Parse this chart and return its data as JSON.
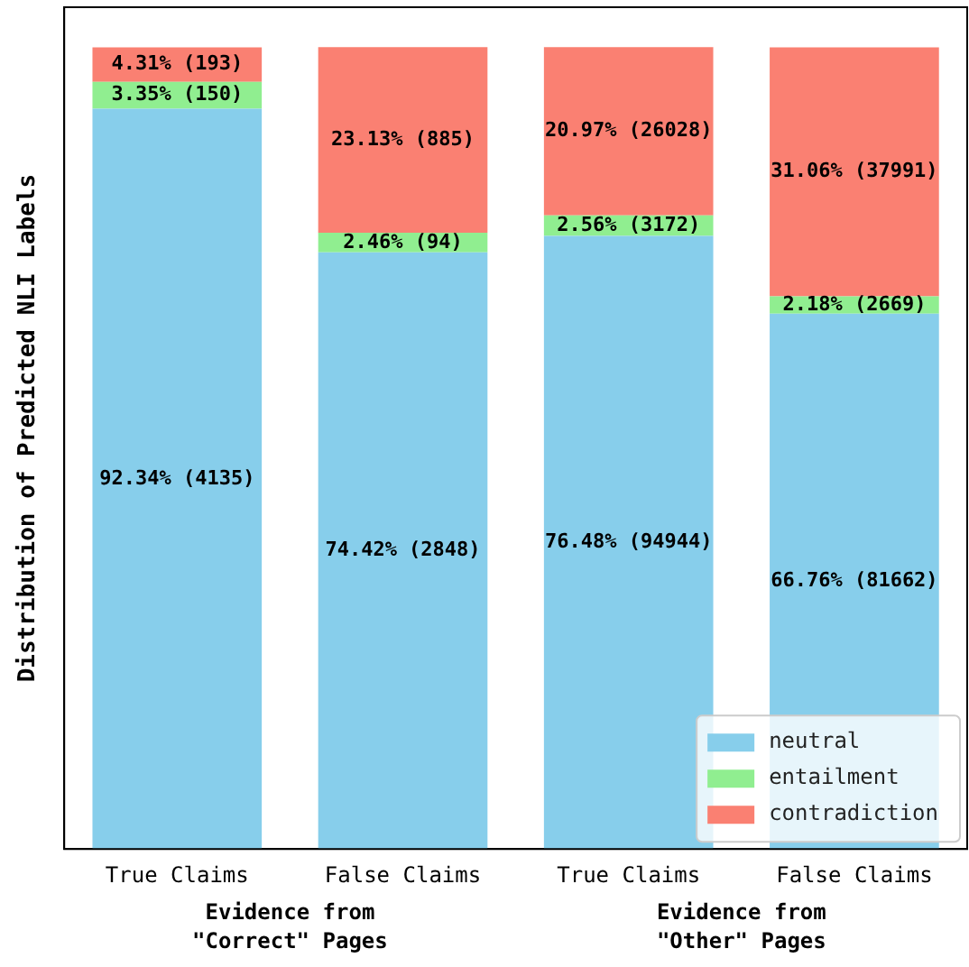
{
  "chart_data": {
    "type": "bar",
    "stacked": true,
    "ylabel": "Distribution of Predicted NLI Labels",
    "categories": [
      "True Claims",
      "False Claims",
      "True Claims",
      "False Claims"
    ],
    "series": [
      {
        "name": "neutral",
        "color": "#87ceeb",
        "values": [
          92.34,
          74.42,
          76.48,
          66.76
        ],
        "value_labels": [
          "92.34% (4135)",
          "74.42% (2848)",
          "76.48% (94944)",
          "66.76% (81662)"
        ]
      },
      {
        "name": "entailment",
        "color": "#90ee90",
        "values": [
          3.35,
          2.46,
          2.56,
          2.18
        ],
        "value_labels": [
          "3.35% (150)",
          "2.46% (94)",
          "2.56% (3172)",
          "2.18% (2669)"
        ]
      },
      {
        "name": "contradiction",
        "color": "#fa8072",
        "values": [
          4.31,
          23.13,
          20.97,
          31.06
        ],
        "value_labels": [
          "4.31% (193)",
          "23.13% (885)",
          "20.97% (26028)",
          "31.06% (37991)"
        ]
      }
    ],
    "ylim": [
      0,
      105
    ],
    "tick_labels": "x",
    "grid": false,
    "legend": "bottom right",
    "annotations": [
      "Evidence from\n\"Correct\" Pages",
      "Evidence from\n\"Other\" Pages"
    ]
  }
}
